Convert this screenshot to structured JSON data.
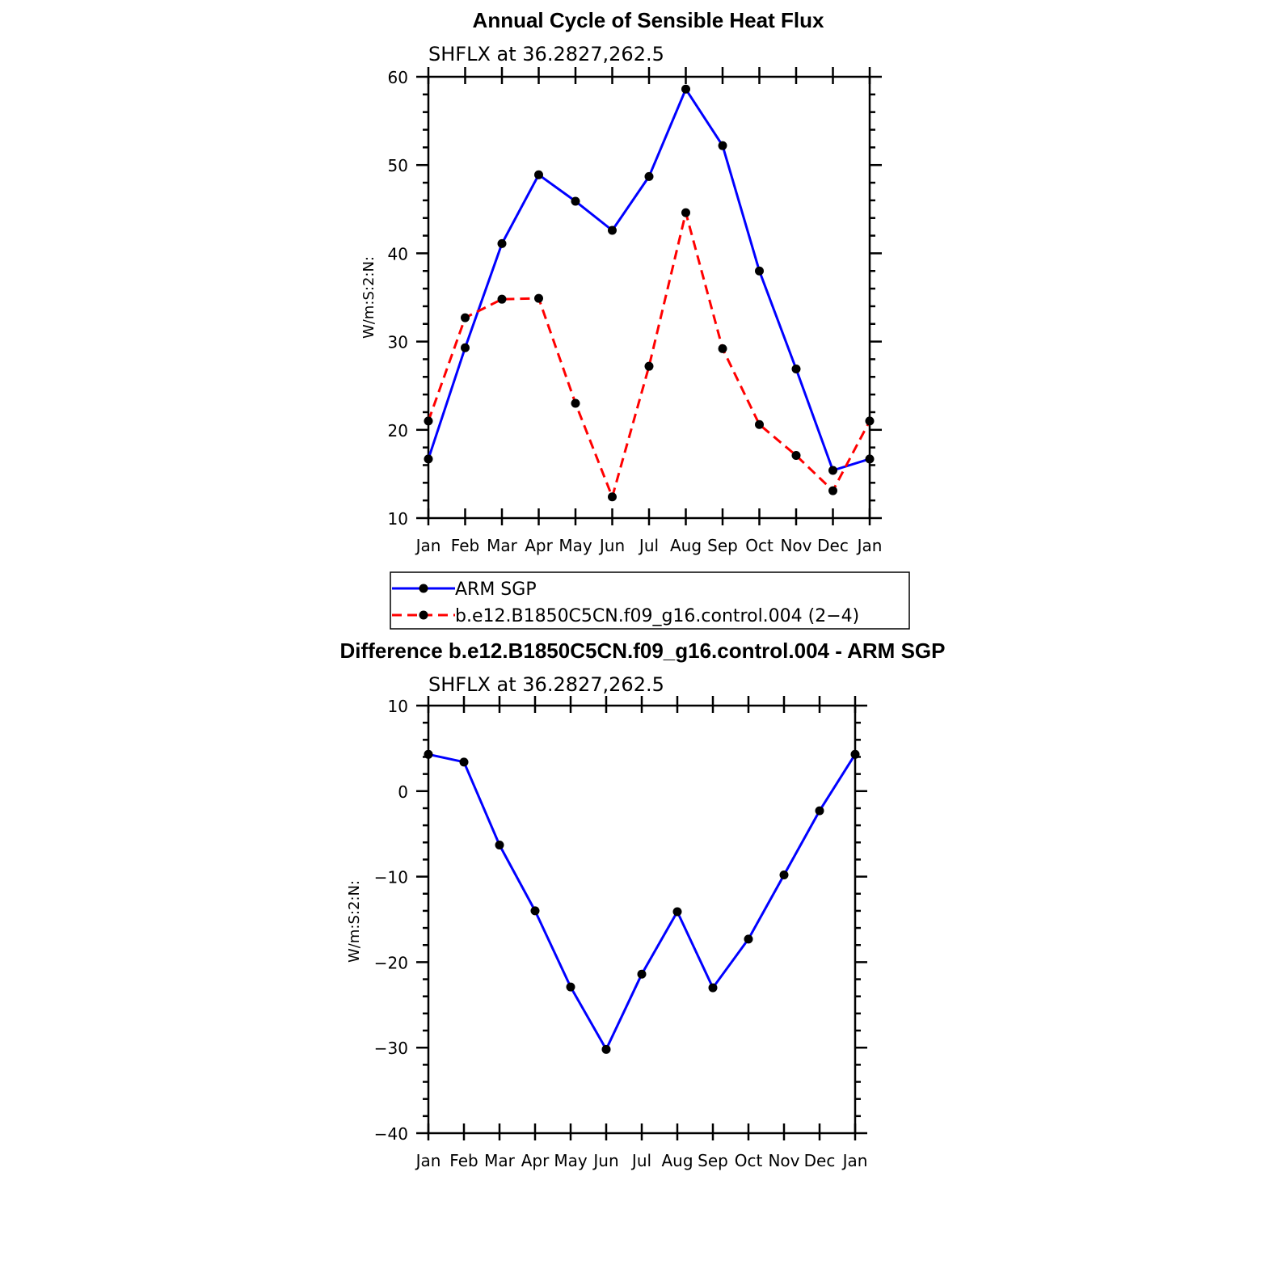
{
  "chart_data": [
    {
      "type": "line",
      "title": "Annual Cycle of Sensible Heat Flux",
      "subtitle": "SHFLX  at  36.2827,262.5",
      "ylabel": "W/m:S:2:N:",
      "xlabel": "",
      "categories": [
        "Jan",
        "Feb",
        "Mar",
        "Apr",
        "May",
        "Jun",
        "Jul",
        "Aug",
        "Sep",
        "Oct",
        "Nov",
        "Dec",
        "Jan"
      ],
      "ylim": [
        10,
        60
      ],
      "yticks": [
        "10",
        "20",
        "30",
        "40",
        "50",
        "60"
      ],
      "series": [
        {
          "name": "ARM  SGP",
          "color": "#0000ff",
          "dash": "solid",
          "values": [
            16.7,
            29.3,
            41.1,
            48.9,
            45.9,
            42.6,
            48.7,
            58.6,
            52.2,
            38.0,
            26.9,
            15.4,
            16.7
          ]
        },
        {
          "name": "b.e12.B1850C5CN.f09_g16.control.004 (2−4)",
          "color": "#ff0000",
          "dash": "dashed",
          "values": [
            21.0,
            32.7,
            34.8,
            34.9,
            23.0,
            12.4,
            27.2,
            44.6,
            29.2,
            20.6,
            17.1,
            13.1,
            21.0
          ]
        }
      ],
      "legend": "below"
    },
    {
      "type": "line",
      "title": "Difference b.e12.B1850C5CN.f09_g16.control.004 - ARM SGP",
      "subtitle": "SHFLX  at  36.2827,262.5",
      "ylabel": "W/m:S:2:N:",
      "xlabel": "",
      "categories": [
        "Jan",
        "Feb",
        "Mar",
        "Apr",
        "May",
        "Jun",
        "Jul",
        "Aug",
        "Sep",
        "Oct",
        "Nov",
        "Dec",
        "Jan"
      ],
      "ylim": [
        -40,
        10
      ],
      "yticks": [
        "−40",
        "−30",
        "−20",
        "−10",
        "0",
        "10"
      ],
      "series": [
        {
          "color": "#0000ff",
          "dash": "solid",
          "values": [
            4.3,
            3.4,
            -6.3,
            -14.0,
            -22.9,
            -30.2,
            -21.4,
            -14.1,
            -23.0,
            -17.3,
            -9.8,
            -2.3,
            4.3
          ]
        }
      ]
    }
  ]
}
